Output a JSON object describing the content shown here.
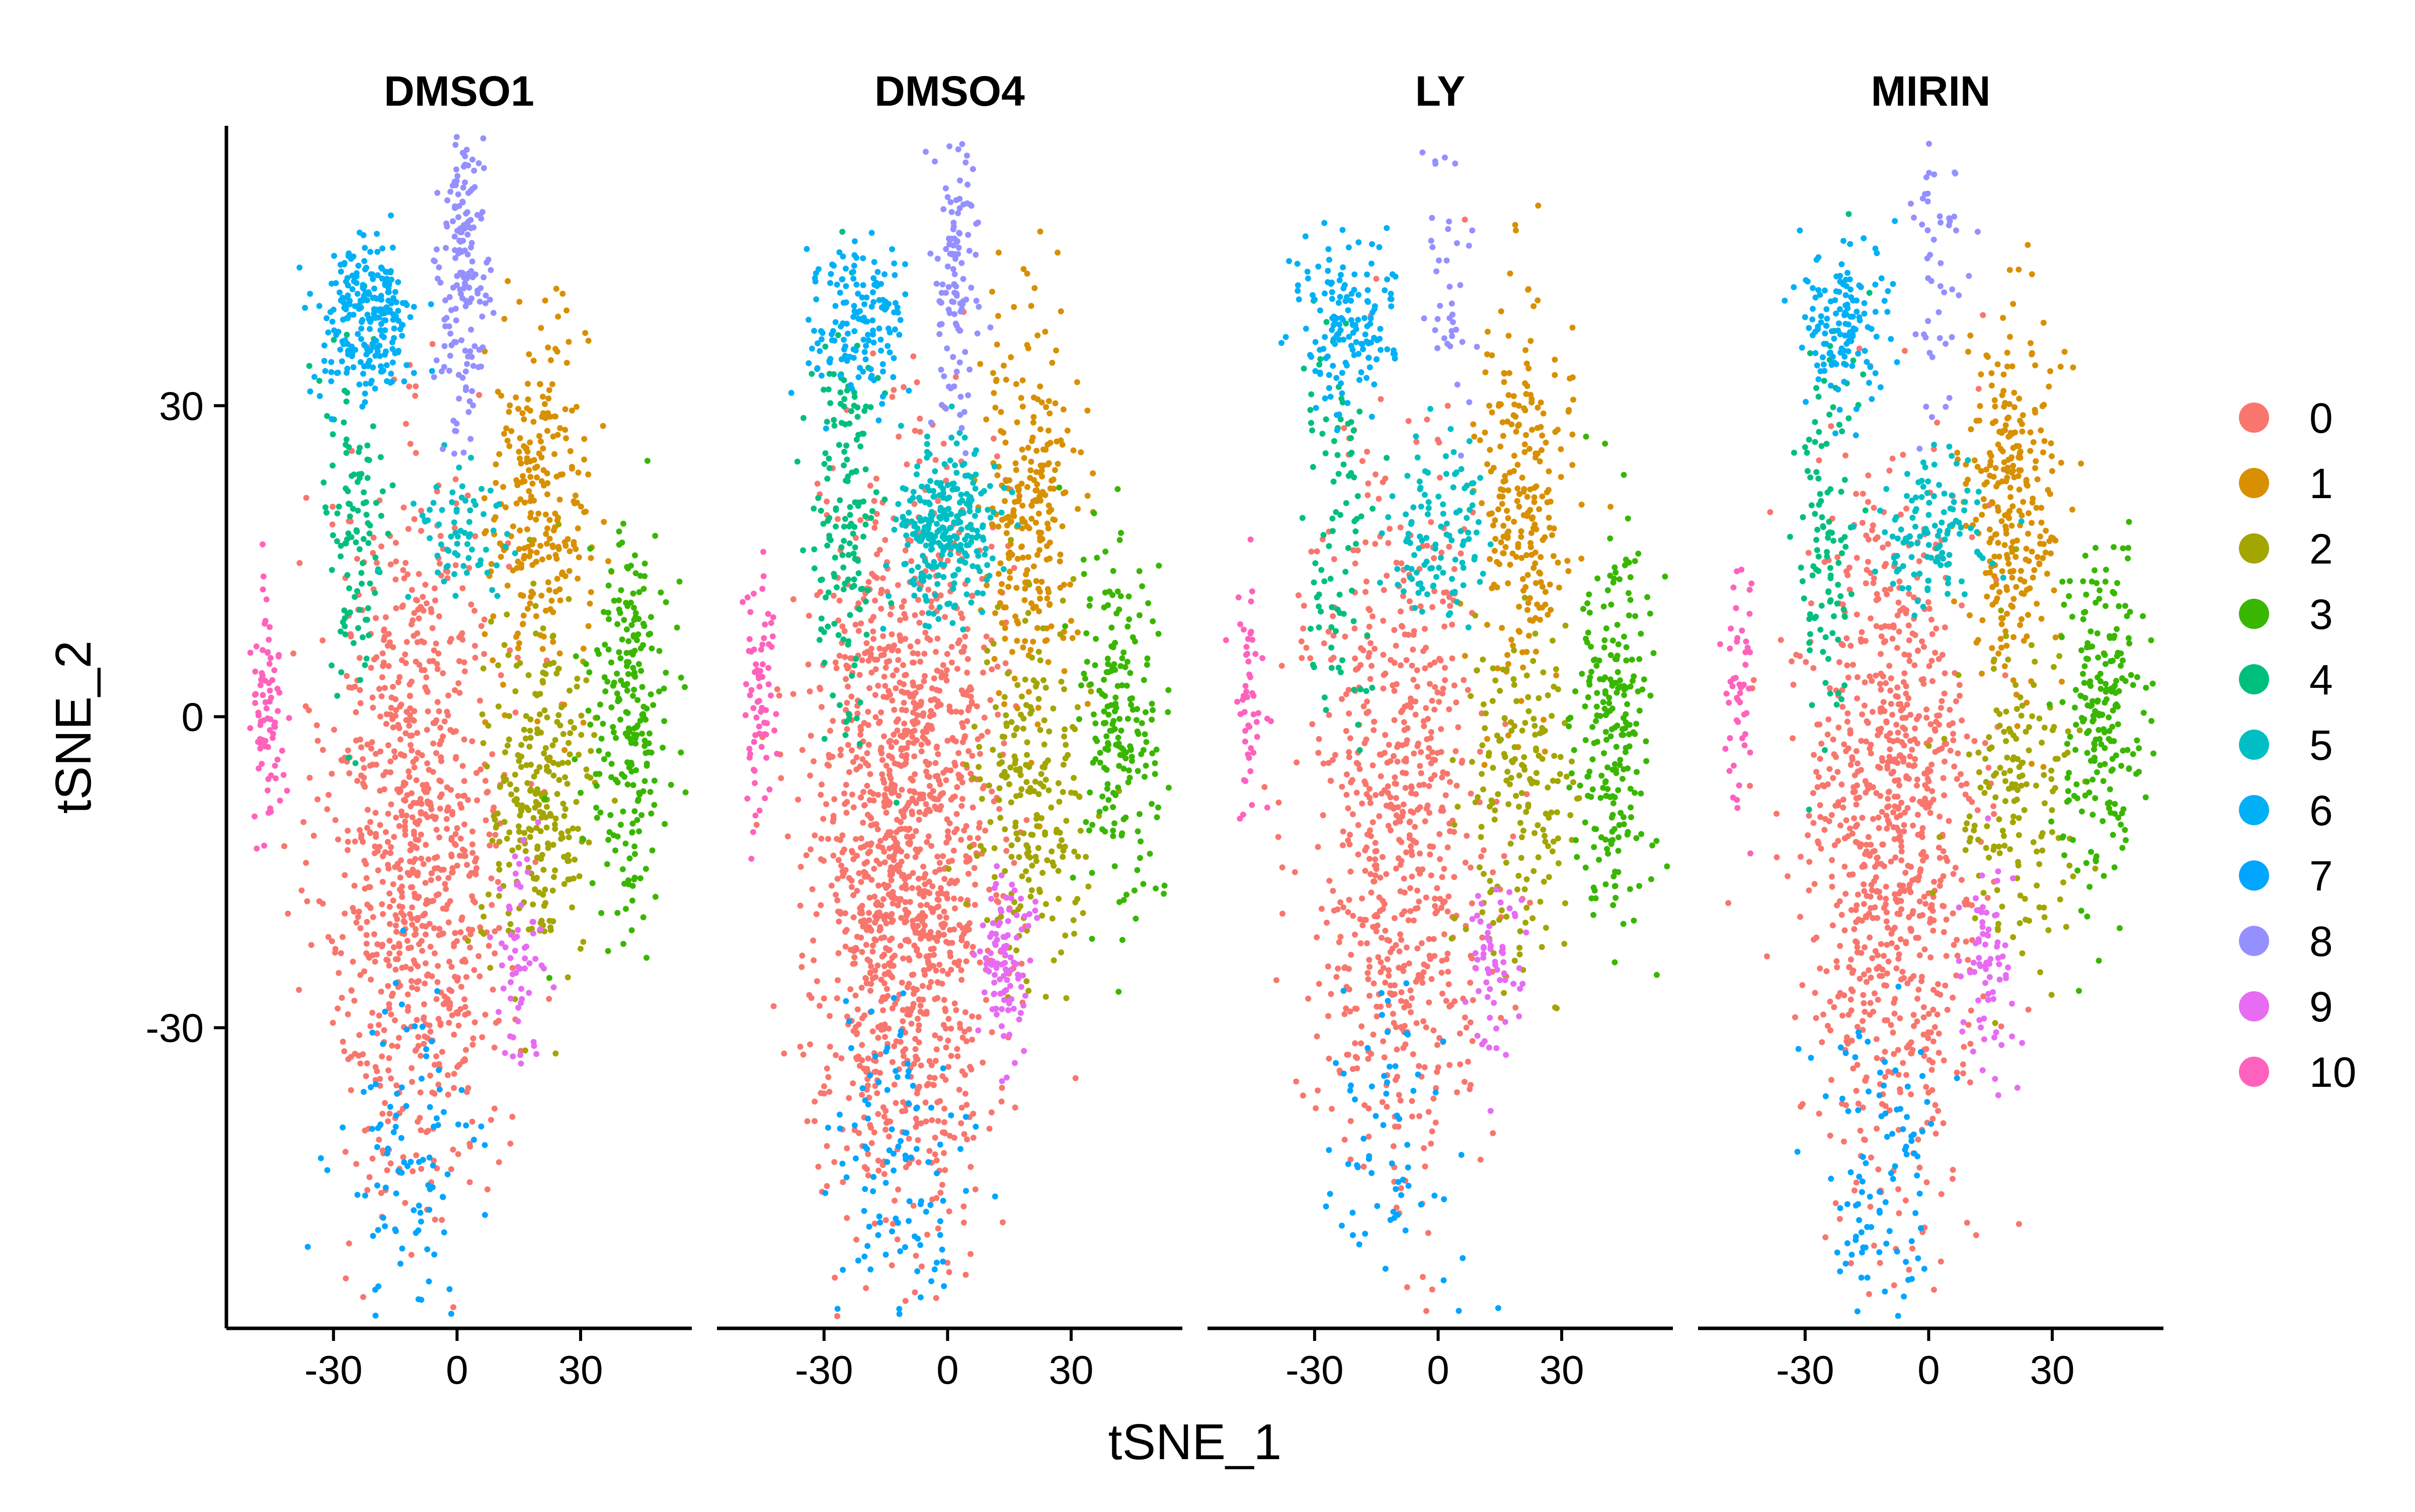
{
  "chart_data": {
    "type": "scatter",
    "layout": "facets",
    "facets": [
      "DMSO1",
      "DMSO4",
      "LY",
      "MIRIN"
    ],
    "xlabel": "tSNE_1",
    "ylabel": "tSNE_2",
    "xlim": [
      -56,
      57
    ],
    "ylim": [
      -59,
      57
    ],
    "x_ticks": [
      -30,
      0,
      30
    ],
    "y_ticks": [
      -30,
      0,
      30
    ],
    "grid": false,
    "legend": {
      "position": "right"
    },
    "series": [
      {
        "name": "0",
        "color": "#F8766D"
      },
      {
        "name": "1",
        "color": "#D89000"
      },
      {
        "name": "2",
        "color": "#A3A500"
      },
      {
        "name": "3",
        "color": "#39B600"
      },
      {
        "name": "4",
        "color": "#00BF7D"
      },
      {
        "name": "5",
        "color": "#00BFC4"
      },
      {
        "name": "6",
        "color": "#00B0F6"
      },
      {
        "name": "7",
        "color": "#00A5FF"
      },
      {
        "name": "8",
        "color": "#9590FF"
      },
      {
        "name": "9",
        "color": "#E76BF3"
      },
      {
        "name": "10",
        "color": "#FF62BC"
      }
    ],
    "cluster_regions": [
      {
        "cluster": "0",
        "x": -10,
        "y": -12,
        "sx": 11,
        "sy": 17
      },
      {
        "cluster": "1",
        "x": 20,
        "y": 20,
        "sx": 6,
        "sy": 9
      },
      {
        "cluster": "2",
        "x": 20,
        "y": -8,
        "sx": 7,
        "sy": 8
      },
      {
        "cluster": "3",
        "x": 42,
        "y": 0,
        "sx": 5,
        "sy": 9
      },
      {
        "cluster": "4",
        "x": -25,
        "y": 18,
        "sx": 4,
        "sy": 10
      },
      {
        "cluster": "5",
        "x": 0,
        "y": 18,
        "sx": 6,
        "sy": 4
      },
      {
        "cluster": "6",
        "x": -22,
        "y": 38,
        "sx": 6,
        "sy": 4
      },
      {
        "cluster": "7",
        "x": -12,
        "y": -43,
        "sx": 8,
        "sy": 8
      },
      {
        "cluster": "8",
        "x": 2,
        "y": 43,
        "sx": 3,
        "sy": 8
      },
      {
        "cluster": "9",
        "x": 14,
        "y": -24,
        "sx": 3,
        "sy": 5
      },
      {
        "cluster": "10",
        "x": -46,
        "y": 2,
        "sx": 2,
        "sy": 6
      }
    ],
    "facet_cell_counts": {
      "DMSO1": [
        900,
        260,
        260,
        240,
        110,
        70,
        240,
        100,
        180,
        60,
        80
      ],
      "DMSO4": [
        1400,
        260,
        220,
        200,
        160,
        280,
        150,
        110,
        120,
        100,
        70
      ],
      "LY": [
        700,
        240,
        180,
        230,
        90,
        110,
        150,
        70,
        40,
        60,
        50
      ],
      "MIRIN": [
        900,
        280,
        160,
        220,
        110,
        120,
        140,
        100,
        50,
        70,
        50
      ]
    }
  }
}
